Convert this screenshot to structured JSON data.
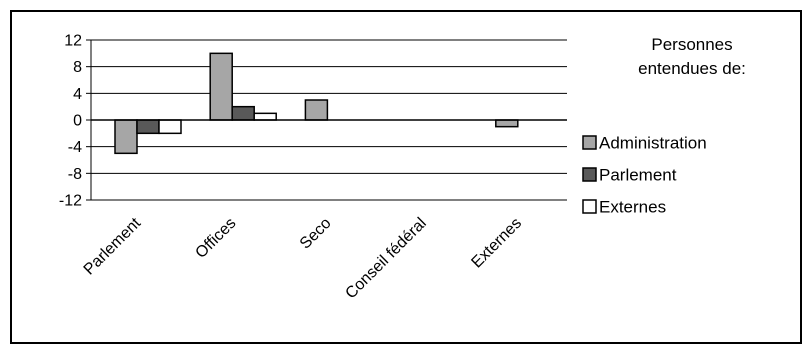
{
  "chart_data": {
    "type": "bar",
    "categories": [
      "Parlement",
      "Offices",
      "Seco",
      "Conseil fédéral",
      "Externes"
    ],
    "series": [
      {
        "name": "Administration",
        "values": [
          -5,
          10,
          3,
          0,
          -1
        ],
        "color": "#a6a6a6"
      },
      {
        "name": "Parlement",
        "values": [
          -2,
          2,
          0,
          0,
          0
        ],
        "color": "#595959"
      },
      {
        "name": "Externes",
        "values": [
          -2,
          1,
          0,
          0,
          0
        ],
        "color": "#ffffff"
      }
    ],
    "ylim": [
      -12,
      12
    ],
    "yticks": [
      12,
      8,
      4,
      0,
      -4,
      -8,
      -12
    ],
    "grid": true,
    "legend_title": "Personnes entendues de:",
    "legend_position": "right"
  }
}
